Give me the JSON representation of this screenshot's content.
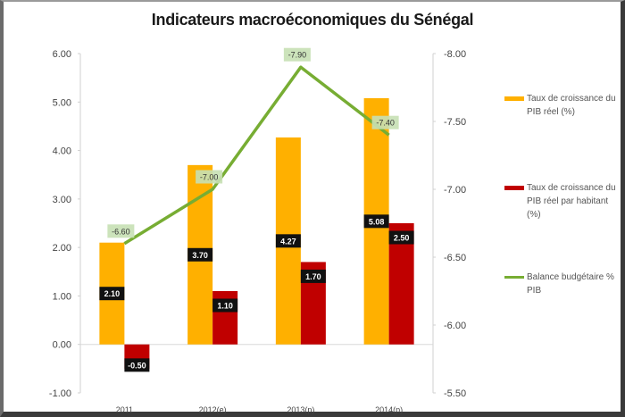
{
  "chart_data": {
    "type": "bar+line",
    "title": "Indicateurs macroéconomiques  du Sénégal",
    "categories": [
      "2011",
      "2012(e)",
      "2013(p)",
      "2014(p)"
    ],
    "left_axis": {
      "min": -1.0,
      "max": 6.0,
      "ticks": [
        "6.00",
        "5.00",
        "4.00",
        "3.00",
        "2.00",
        "1.00",
        "0.00",
        "-1.00"
      ]
    },
    "right_axis": {
      "min": -8.0,
      "max": -5.5,
      "inverted": true,
      "ticks": [
        "-8.00",
        "-7.50",
        "-7.00",
        "-6.50",
        "-6.00",
        "-5.50"
      ]
    },
    "series": [
      {
        "name": "Taux de croissance du PIB réel (%)",
        "type": "bar",
        "axis": "left",
        "color": "#FFB000",
        "values": [
          2.1,
          3.7,
          4.27,
          5.08
        ],
        "labels": [
          "2.10",
          "3.70",
          "4.27",
          "5.08"
        ]
      },
      {
        "name": "Taux de croissance du PIB réel par habitant (%)",
        "type": "bar",
        "axis": "left",
        "color": "#C00000",
        "values": [
          -0.5,
          1.1,
          1.7,
          2.5
        ],
        "labels": [
          "-0.50",
          "1.10",
          "1.70",
          "2.50"
        ]
      },
      {
        "name": "Balance budgétaire % PIB",
        "type": "line",
        "axis": "right",
        "color": "#77AD33",
        "values": [
          -6.6,
          -7.0,
          -7.9,
          -7.4
        ],
        "labels": [
          "-6.60",
          "-7.00",
          "-7.90",
          "-7.40"
        ]
      }
    ],
    "legend_position": "right",
    "grid": false
  },
  "legend": {
    "items": [
      {
        "label": "Taux de croissance du PIB réel (%)",
        "color": "#FFB000"
      },
      {
        "label": "Taux de croissance du PIB réel par habitant (%)",
        "color": "#C00000"
      },
      {
        "label": "Balance budgétaire % PIB",
        "color": "#77AD33"
      }
    ]
  }
}
